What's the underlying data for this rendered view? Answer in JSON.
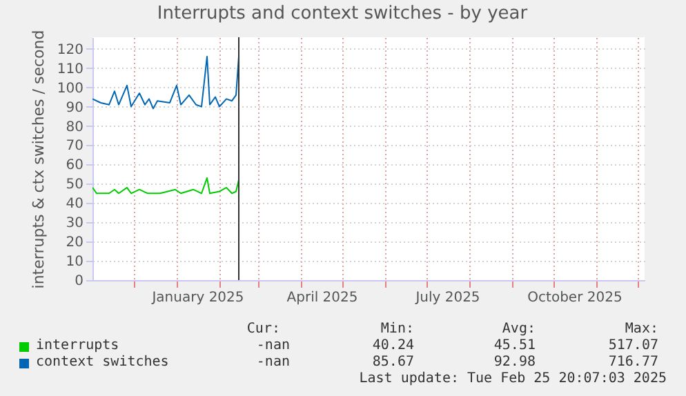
{
  "chart_data": {
    "type": "line",
    "title": "Interrupts and context switches - by year",
    "ylabel": "interrupts & ctx switches / second",
    "series": [
      {
        "name": "interrupts",
        "color": "#00cc00",
        "x": [
          "2024-11-01",
          "2024-11-04",
          "2024-11-13",
          "2024-11-17",
          "2024-11-20",
          "2024-11-26",
          "2024-11-29",
          "2024-12-05",
          "2024-12-11",
          "2024-12-20",
          "2024-12-31",
          "2025-01-04",
          "2025-01-13",
          "2025-01-19",
          "2025-01-23",
          "2025-01-25",
          "2025-02-01",
          "2025-02-06",
          "2025-02-10",
          "2025-02-13",
          "2025-02-15"
        ],
        "values": [
          48,
          45,
          45,
          47,
          45,
          48,
          45,
          47,
          45,
          45,
          47,
          45,
          47,
          45,
          53,
          45,
          46,
          48,
          45,
          46,
          52
        ]
      },
      {
        "name": "context switches",
        "color": "#0066b3",
        "x": [
          "2024-11-01",
          "2024-11-07",
          "2024-11-13",
          "2024-11-17",
          "2024-11-20",
          "2024-11-26",
          "2024-11-29",
          "2024-12-05",
          "2024-12-09",
          "2024-12-12",
          "2024-12-15",
          "2024-12-18",
          "2024-12-27",
          "2025-01-01",
          "2025-01-04",
          "2025-01-10",
          "2025-01-15",
          "2025-01-19",
          "2025-01-23",
          "2025-01-25",
          "2025-01-29",
          "2025-02-01",
          "2025-02-06",
          "2025-02-10",
          "2025-02-13",
          "2025-02-15"
        ],
        "values": [
          94,
          92,
          91,
          98,
          91,
          101,
          90,
          97,
          91,
          94,
          89,
          93,
          92,
          101,
          91,
          96,
          91,
          90,
          116,
          91,
          95,
          90,
          94,
          93,
          96,
          116
        ]
      }
    ],
    "xlim": [
      "2024-11-01",
      "2025-12-06"
    ],
    "xticks": [
      {
        "value": "2024-12-01",
        "label": null
      },
      {
        "value": "2025-01-01",
        "label": null
      },
      {
        "value": "2025-01-16",
        "label": "January 2025"
      },
      {
        "value": "2025-02-01",
        "label": null
      },
      {
        "value": "2025-03-01",
        "label": null
      },
      {
        "value": "2025-04-01",
        "label": null
      },
      {
        "value": "2025-04-16",
        "label": "April 2025"
      },
      {
        "value": "2025-05-01",
        "label": null
      },
      {
        "value": "2025-06-01",
        "label": null
      },
      {
        "value": "2025-07-01",
        "label": null
      },
      {
        "value": "2025-07-16",
        "label": "July 2025"
      },
      {
        "value": "2025-08-01",
        "label": null
      },
      {
        "value": "2025-09-01",
        "label": null
      },
      {
        "value": "2025-10-01",
        "label": null
      },
      {
        "value": "2025-10-16",
        "label": "October 2025"
      },
      {
        "value": "2025-11-01",
        "label": null
      },
      {
        "value": "2025-12-01",
        "label": null
      }
    ],
    "ylim": [
      0,
      126
    ],
    "yticks": [
      0,
      10,
      20,
      30,
      40,
      50,
      60,
      70,
      80,
      90,
      100,
      110,
      120
    ],
    "grid": true,
    "legend": "bottom left",
    "ref_lines": [
      {
        "axis": "x",
        "value": "2025-02-15",
        "color": "#333333"
      }
    ],
    "annotations": [
      "Cur:",
      "Min:",
      "Avg:",
      "Max:",
      "-nan",
      "40.24",
      "45.51",
      "517.07",
      "-nan",
      "85.67",
      "92.98",
      "716.77",
      "Last update: Tue Feb 25 20:07:03 2025"
    ]
  }
}
